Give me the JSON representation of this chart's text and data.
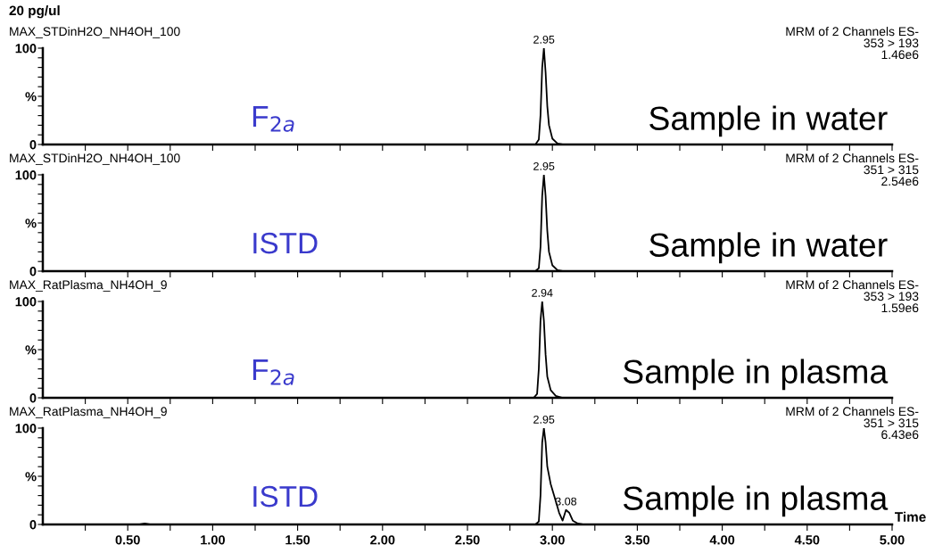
{
  "chart_data": [
    {
      "type": "line",
      "title": "20 pg/ul",
      "subtitle": "MAX_STDinH2O_NH4OH_100",
      "xlim": [
        0,
        5
      ],
      "ylim": [
        0,
        100
      ],
      "tick_labels": "y",
      "grid": false,
      "legend": false,
      "marker": "none",
      "line_style": "solid",
      "xticks": [
        {
          "value": 0.25,
          "label": null
        },
        {
          "value": 0.5,
          "label": null
        },
        {
          "value": 0.75,
          "label": null
        },
        {
          "value": 1,
          "label": null
        },
        {
          "value": 1.25,
          "label": null
        },
        {
          "value": 1.5,
          "label": null
        },
        {
          "value": 1.75,
          "label": null
        },
        {
          "value": 2,
          "label": null
        },
        {
          "value": 2.25,
          "label": null
        },
        {
          "value": 2.5,
          "label": null
        },
        {
          "value": 2.75,
          "label": null
        },
        {
          "value": 3,
          "label": null
        },
        {
          "value": 3.25,
          "label": null
        },
        {
          "value": 3.5,
          "label": null
        },
        {
          "value": 3.75,
          "label": null
        },
        {
          "value": 4,
          "label": null
        },
        {
          "value": 4.25,
          "label": null
        },
        {
          "value": 4.5,
          "label": null
        },
        {
          "value": 4.75,
          "label": null
        },
        {
          "value": 5,
          "label": null
        }
      ],
      "yticks": [
        0,
        {
          "value": 10,
          "label": null
        },
        {
          "value": 20,
          "label": null
        },
        {
          "value": 30,
          "label": null
        },
        {
          "value": 40,
          "label": null
        },
        {
          "value": 50,
          "label": "%"
        },
        {
          "value": 60,
          "label": null
        },
        {
          "value": 70,
          "label": null
        },
        {
          "value": 80,
          "label": null
        },
        {
          "value": 90,
          "label": null
        },
        100
      ],
      "series": [
        {
          "color": "#000000",
          "x": [
            0,
            2.9,
            2.92,
            2.93,
            2.94,
            2.95,
            2.96,
            2.97,
            2.98,
            3.0,
            3.03,
            3.06,
            5.0
          ],
          "values": [
            0,
            0,
            5,
            30,
            80,
            100,
            75,
            40,
            20,
            6,
            1,
            0,
            0
          ]
        }
      ],
      "annotations": [
        "MRM of 2 Channels ES-\n353 > 193\n1.46e6",
        "Sample in water",
        "F$_{2a}$",
        {
          "text": "2.95",
          "x": 2.95,
          "y": 100
        }
      ]
    },
    {
      "type": "line",
      "subtitle": "MAX_STDinH2O_NH4OH_100",
      "xlim": [
        0,
        5
      ],
      "ylim": [
        0,
        100
      ],
      "tick_labels": "y",
      "grid": false,
      "legend": false,
      "marker": "none",
      "line_style": "solid",
      "xticks": [
        {
          "value": 0.25,
          "label": null
        },
        {
          "value": 0.5,
          "label": null
        },
        {
          "value": 0.75,
          "label": null
        },
        {
          "value": 1,
          "label": null
        },
        {
          "value": 1.25,
          "label": null
        },
        {
          "value": 1.5,
          "label": null
        },
        {
          "value": 1.75,
          "label": null
        },
        {
          "value": 2,
          "label": null
        },
        {
          "value": 2.25,
          "label": null
        },
        {
          "value": 2.5,
          "label": null
        },
        {
          "value": 2.75,
          "label": null
        },
        {
          "value": 3,
          "label": null
        },
        {
          "value": 3.25,
          "label": null
        },
        {
          "value": 3.5,
          "label": null
        },
        {
          "value": 3.75,
          "label": null
        },
        {
          "value": 4,
          "label": null
        },
        {
          "value": 4.25,
          "label": null
        },
        {
          "value": 4.5,
          "label": null
        },
        {
          "value": 4.75,
          "label": null
        },
        {
          "value": 5,
          "label": null
        }
      ],
      "yticks": [
        0,
        {
          "value": 10,
          "label": null
        },
        {
          "value": 20,
          "label": null
        },
        {
          "value": 30,
          "label": null
        },
        {
          "value": 40,
          "label": null
        },
        {
          "value": 50,
          "label": "%"
        },
        {
          "value": 60,
          "label": null
        },
        {
          "value": 70,
          "label": null
        },
        {
          "value": 80,
          "label": null
        },
        {
          "value": 90,
          "label": null
        },
        100
      ],
      "series": [
        {
          "color": "#000000",
          "x": [
            0,
            2.9,
            2.92,
            2.93,
            2.94,
            2.95,
            2.96,
            2.97,
            2.98,
            3.0,
            3.03,
            3.06,
            5.0
          ],
          "values": [
            0,
            0,
            3,
            25,
            78,
            100,
            78,
            42,
            20,
            6,
            1,
            0,
            0
          ]
        }
      ],
      "annotations": [
        "MRM of 2 Channels ES-\n351 > 315\n2.54e6",
        "Sample in water",
        "ISTD",
        {
          "text": "2.95",
          "x": 2.95,
          "y": 100
        }
      ]
    },
    {
      "type": "line",
      "subtitle": "MAX_RatPlasma_NH4OH_9",
      "xlim": [
        0,
        5
      ],
      "ylim": [
        0,
        100
      ],
      "tick_labels": "y",
      "grid": false,
      "legend": false,
      "marker": "none",
      "line_style": "solid",
      "xticks": [
        {
          "value": 0.25,
          "label": null
        },
        {
          "value": 0.5,
          "label": null
        },
        {
          "value": 0.75,
          "label": null
        },
        {
          "value": 1,
          "label": null
        },
        {
          "value": 1.25,
          "label": null
        },
        {
          "value": 1.5,
          "label": null
        },
        {
          "value": 1.75,
          "label": null
        },
        {
          "value": 2,
          "label": null
        },
        {
          "value": 2.25,
          "label": null
        },
        {
          "value": 2.5,
          "label": null
        },
        {
          "value": 2.75,
          "label": null
        },
        {
          "value": 3,
          "label": null
        },
        {
          "value": 3.25,
          "label": null
        },
        {
          "value": 3.5,
          "label": null
        },
        {
          "value": 3.75,
          "label": null
        },
        {
          "value": 4,
          "label": null
        },
        {
          "value": 4.25,
          "label": null
        },
        {
          "value": 4.5,
          "label": null
        },
        {
          "value": 4.75,
          "label": null
        },
        {
          "value": 5,
          "label": null
        }
      ],
      "yticks": [
        0,
        {
          "value": 10,
          "label": null
        },
        {
          "value": 20,
          "label": null
        },
        {
          "value": 30,
          "label": null
        },
        {
          "value": 40,
          "label": null
        },
        {
          "value": 50,
          "label": "%"
        },
        {
          "value": 60,
          "label": null
        },
        {
          "value": 70,
          "label": null
        },
        {
          "value": 80,
          "label": null
        },
        {
          "value": 90,
          "label": null
        },
        100
      ],
      "series": [
        {
          "color": "#000000",
          "x": [
            0,
            2.89,
            2.91,
            2.92,
            2.93,
            2.94,
            2.95,
            2.96,
            2.97,
            2.99,
            3.02,
            3.06,
            5.0
          ],
          "values": [
            0,
            0,
            4,
            30,
            80,
            100,
            80,
            45,
            22,
            8,
            2,
            0,
            0
          ]
        }
      ],
      "annotations": [
        "MRM of 2 Channels ES-\n353 > 193\n1.59e6",
        "Sample in plasma",
        "F$_{2a}$",
        {
          "text": "2.94",
          "x": 2.94,
          "y": 100
        }
      ]
    },
    {
      "type": "line",
      "subtitle": "MAX_RatPlasma_NH4OH_9",
      "xlim": [
        0,
        5
      ],
      "ylim": [
        0,
        100
      ],
      "grid": false,
      "legend": false,
      "marker": "none",
      "line_style": "solid",
      "xlabel": "Time",
      "xticks": [
        {
          "value": 0.25,
          "label": null
        },
        {
          "value": 0.5,
          "label": "0.50"
        },
        {
          "value": 0.75,
          "label": null
        },
        {
          "value": 1,
          "label": "1.00"
        },
        {
          "value": 1.25,
          "label": null
        },
        {
          "value": 1.5,
          "label": "1.50"
        },
        {
          "value": 1.75,
          "label": null
        },
        {
          "value": 2,
          "label": "2.00"
        },
        {
          "value": 2.25,
          "label": null
        },
        {
          "value": 2.5,
          "label": "2.50"
        },
        {
          "value": 2.75,
          "label": null
        },
        {
          "value": 3,
          "label": "3.00"
        },
        {
          "value": 3.25,
          "label": null
        },
        {
          "value": 3.5,
          "label": "3.50"
        },
        {
          "value": 3.75,
          "label": null
        },
        {
          "value": 4,
          "label": "4.00"
        },
        {
          "value": 4.25,
          "label": null
        },
        {
          "value": 4.5,
          "label": "4.50"
        },
        {
          "value": 4.75,
          "label": null
        },
        {
          "value": 5,
          "label": "5.00"
        }
      ],
      "yticks": [
        0,
        {
          "value": 10,
          "label": null
        },
        {
          "value": 20,
          "label": null
        },
        {
          "value": 30,
          "label": null
        },
        {
          "value": 40,
          "label": null
        },
        {
          "value": 50,
          "label": "%"
        },
        {
          "value": 60,
          "label": null
        },
        {
          "value": 70,
          "label": null
        },
        {
          "value": 80,
          "label": null
        },
        {
          "value": 90,
          "label": null
        },
        100
      ],
      "series": [
        {
          "color": "#000000",
          "x": [
            0,
            0.57,
            0.6,
            0.63,
            2.9,
            2.92,
            2.93,
            2.94,
            2.95,
            2.96,
            2.97,
            2.99,
            3.01,
            3.04,
            3.06,
            3.08,
            3.1,
            3.12,
            3.15,
            3.18,
            5.0
          ],
          "values": [
            0,
            0,
            1,
            0,
            0,
            3,
            30,
            85,
            100,
            85,
            60,
            42,
            30,
            12,
            4,
            15,
            12,
            4,
            1,
            0,
            0
          ]
        }
      ],
      "annotations": [
        "MRM of 2 Channels ES-\n351 > 315\n6.43e6",
        "Sample in plasma",
        "ISTD",
        {
          "text": "2.95",
          "x": 2.95,
          "y": 100
        },
        {
          "text": "3.08",
          "x": 3.08,
          "y": 15
        }
      ]
    }
  ]
}
